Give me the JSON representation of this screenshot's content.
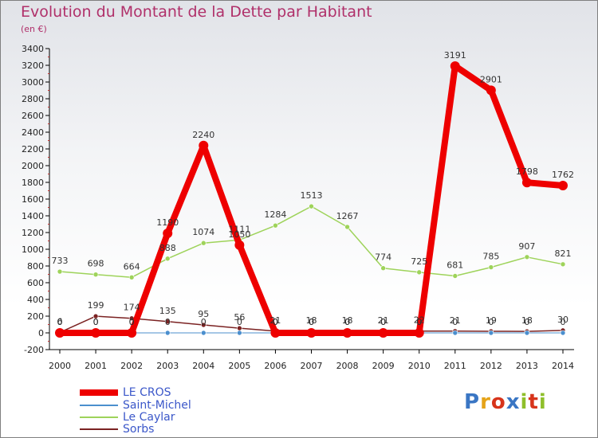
{
  "title": "Evolution du Montant de la Dette par Habitant",
  "subtitle": "(en €)",
  "logo": {
    "text": "Proxiti",
    "colors": [
      "#3a76c4",
      "#e5a318",
      "#d7341b",
      "#3a76c4",
      "#8fbf2b",
      "#d7341b",
      "#8fbf2b"
    ]
  },
  "chart_data": {
    "type": "line",
    "x": [
      "2000",
      "2001",
      "2002",
      "2003",
      "2004",
      "2005",
      "2006",
      "2007",
      "2008",
      "2009",
      "2010",
      "2011",
      "2012",
      "2013",
      "2014"
    ],
    "ylim": [
      -200,
      3400
    ],
    "yticks": [
      -200,
      0,
      200,
      400,
      600,
      800,
      1000,
      1200,
      1400,
      1600,
      1800,
      2000,
      2200,
      2400,
      2600,
      2800,
      3000,
      3200,
      3400
    ],
    "grid": false,
    "legend_position": "bottom-left",
    "series": [
      {
        "name": "LE CROS",
        "color": "#ee0000",
        "values": [
          0,
          0,
          0,
          1190,
          2240,
          1050,
          0,
          0,
          0,
          0,
          0,
          3191,
          2901,
          1798,
          1762
        ],
        "labels": [
          "0",
          "0",
          "0",
          "1190",
          "2240",
          "1050",
          "0",
          "0",
          "0",
          "0",
          "0",
          "3191",
          "2901",
          "1798",
          "1762"
        ]
      },
      {
        "name": "Saint-Michel",
        "color": "#4b8fce",
        "values": [
          0,
          0,
          0,
          0,
          0,
          0,
          0,
          0,
          0,
          0,
          0,
          0,
          0,
          0,
          0
        ],
        "labels": [
          "0",
          "0",
          "0",
          "0",
          "0",
          "0",
          "0",
          "0",
          "0",
          "0",
          "0",
          "0",
          "0",
          "0",
          "0"
        ]
      },
      {
        "name": "Le Caylar",
        "color": "#9ed35a",
        "values": [
          733,
          698,
          664,
          888,
          1074,
          1111,
          1284,
          1513,
          1267,
          774,
          725,
          681,
          785,
          907,
          821
        ],
        "labels": [
          "733",
          "698",
          "664",
          "888",
          "1074",
          "1111",
          "1284",
          "1513",
          "1267",
          "774",
          "725",
          "681",
          "785",
          "907",
          "821"
        ]
      },
      {
        "name": "Sorbs",
        "color": "#7b2222",
        "values": [
          6,
          199,
          174,
          135,
          95,
          56,
          21,
          18,
          18,
          21,
          22,
          21,
          19,
          18,
          30
        ],
        "labels": [
          "6",
          "199",
          "174",
          "135",
          "95",
          "56",
          "21",
          "18",
          "18",
          "21",
          "22",
          "21",
          "19",
          "18",
          "30"
        ]
      }
    ]
  }
}
